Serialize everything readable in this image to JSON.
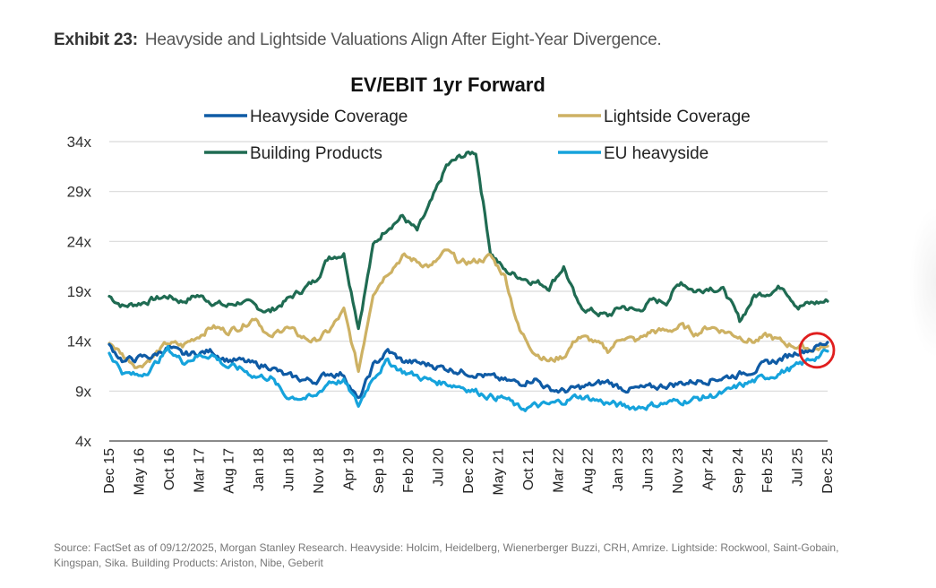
{
  "exhibit": {
    "label": "Exhibit 23:",
    "title": "Heavyside and Lightside Valuations Align After Eight-Year Divergence."
  },
  "source_note": "Source: FactSet as of 09/12/2025, Morgan Stanley Research. Heavyside: Holcim, Heidelberg, Wienerberger Buzzi, CRH, Amrize. Lightside: Rockwool, Saint-Gobain, Kingspan, Sika. Building Products: Ariston, Nibe, Geberit",
  "chart_data": {
    "type": "line",
    "title": "EV/EBIT 1yr Forward",
    "xlabel": "",
    "ylabel": "",
    "ylim": [
      4,
      34
    ],
    "y_ticks": [
      "4x",
      "9x",
      "14x",
      "19x",
      "24x",
      "29x",
      "34x"
    ],
    "y_tick_values": [
      4,
      9,
      14,
      19,
      24,
      29,
      34
    ],
    "grid": true,
    "legend_position": "top",
    "x_ticks": [
      "Dec 15",
      "May 16",
      "Oct 16",
      "Mar 17",
      "Aug 17",
      "Jan 18",
      "Jun 18",
      "Nov 18",
      "Apr 19",
      "Sep 19",
      "Feb 20",
      "Jul 20",
      "Dec 20",
      "May 21",
      "Oct 21",
      "Mar 22",
      "Aug 22",
      "Jan 23",
      "Jun 23",
      "Nov 23",
      "Apr 24",
      "Sep 24",
      "Feb 25",
      "Jul 25",
      "Dec 25"
    ],
    "highlight": {
      "description": "red circle around series convergence",
      "x_label": "Sep 25",
      "y_value": 13,
      "color": "#e01e1e"
    },
    "series": [
      {
        "name": "Heavyside Coverage",
        "color": "#0f5ba5",
        "values": [
          13.5,
          12.0,
          12.3,
          12.5,
          13.4,
          12.6,
          12.8,
          13.0,
          12.2,
          12.0,
          11.6,
          11.5,
          10.5,
          10.2,
          10.0,
          10.8,
          10.7,
          8.0,
          11.5,
          13.0,
          12.0,
          11.8,
          11.6,
          11.3,
          11.0,
          10.8,
          10.4,
          10.0,
          9.8,
          10.3,
          9.2,
          9.0,
          9.3,
          9.6,
          9.9,
          9.3,
          9.2,
          9.3,
          9.6,
          9.8,
          10.0,
          10.2,
          10.4,
          10.7,
          11.2,
          11.8,
          12.3,
          13.0,
          13.3,
          13.9
        ]
      },
      {
        "name": "Lightside Coverage",
        "color": "#cdb163",
        "values": [
          14.0,
          12.5,
          11.5,
          12.5,
          13.8,
          13.5,
          14.5,
          15.5,
          15.0,
          15.5,
          16.5,
          14.2,
          15.5,
          14.5,
          14.0,
          15.0,
          17.0,
          11.0,
          19.0,
          21.0,
          22.5,
          22.0,
          21.5,
          23.0,
          21.8,
          22.0,
          22.5,
          20.5,
          15.0,
          13.0,
          12.0,
          12.5,
          14.5,
          14.0,
          13.0,
          14.5,
          14.0,
          15.0,
          15.0,
          15.5,
          14.8,
          15.5,
          15.0,
          14.5,
          14.0,
          14.5,
          13.8,
          13.5,
          13.2,
          13.5
        ]
      },
      {
        "name": "Building Products",
        "color": "#1f6b52",
        "values": [
          18.5,
          17.5,
          17.8,
          18.2,
          18.5,
          18.0,
          18.6,
          18.0,
          17.5,
          18.0,
          17.4,
          17.0,
          18.0,
          19.0,
          20.0,
          22.5,
          22.8,
          15.5,
          23.5,
          25.5,
          26.5,
          25.0,
          28.0,
          31.5,
          32.5,
          33.0,
          23.0,
          21.0,
          20.5,
          20.0,
          19.5,
          21.5,
          17.5,
          17.0,
          16.5,
          17.5,
          17.0,
          18.0,
          18.0,
          20.0,
          19.0,
          19.5,
          19.0,
          16.0,
          18.5,
          19.0,
          19.5,
          17.5,
          17.8,
          18.0
        ]
      },
      {
        "name": "EU heavyside",
        "color": "#16a3dc",
        "values": [
          12.8,
          10.8,
          10.5,
          11.5,
          13.2,
          12.0,
          12.5,
          12.7,
          11.5,
          11.2,
          10.5,
          10.4,
          8.5,
          8.4,
          8.3,
          10.0,
          10.0,
          7.5,
          10.5,
          12.0,
          11.0,
          10.5,
          10.0,
          9.8,
          9.5,
          9.0,
          8.5,
          8.3,
          7.2,
          7.5,
          7.6,
          8.0,
          8.5,
          8.2,
          7.8,
          7.5,
          7.4,
          7.6,
          7.8,
          8.0,
          8.2,
          8.5,
          8.8,
          9.5,
          10.0,
          10.5,
          11.0,
          11.5,
          12.3,
          13.0
        ]
      }
    ]
  }
}
